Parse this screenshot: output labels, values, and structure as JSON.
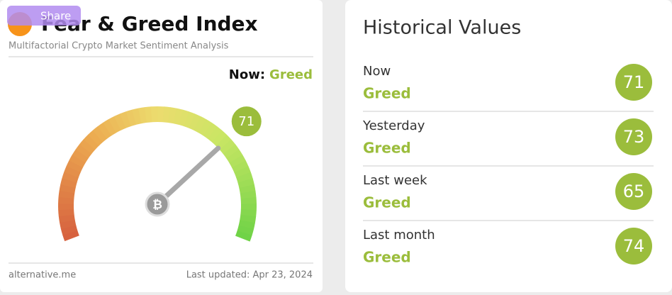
{
  "header": {
    "share": "Share",
    "title": "Fear & Greed Index",
    "subtitle": "Multifactorial Crypto Market Sentiment Analysis"
  },
  "now": {
    "label": "Now:",
    "classification": "Greed"
  },
  "gauge": {
    "value": 71
  },
  "footer": {
    "source": "alternative.me",
    "updated": "Last updated: Apr 23, 2024"
  },
  "historical": {
    "title": "Historical Values",
    "rows": [
      {
        "label": "Now",
        "classification": "Greed",
        "value": 71
      },
      {
        "label": "Yesterday",
        "classification": "Greed",
        "value": 73
      },
      {
        "label": "Last week",
        "classification": "Greed",
        "value": 65
      },
      {
        "label": "Last month",
        "classification": "Greed",
        "value": 74
      }
    ]
  }
}
